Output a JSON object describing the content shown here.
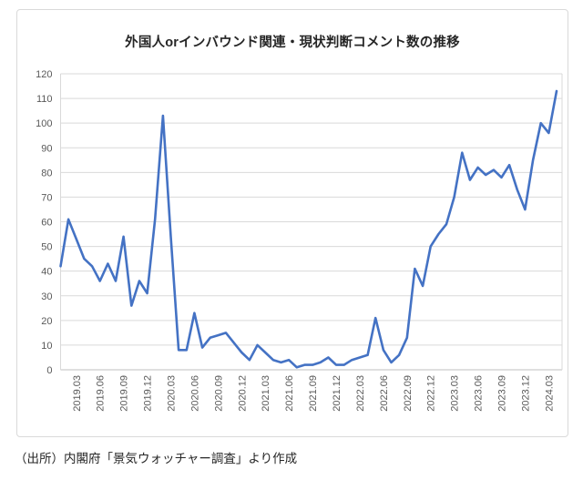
{
  "chart": {
    "title": "外国人orインバウンド関連・現状判断コメント数の推移"
  },
  "footer": {
    "source_text": "（出所）内閣府「景気ウォッチャー調査」より作成"
  },
  "chart_data": {
    "type": "line",
    "title": "外国人orインバウンド関連・現状判断コメント数の推移",
    "x": [
      "2019.01",
      "2019.02",
      "2019.03",
      "2019.04",
      "2019.05",
      "2019.06",
      "2019.07",
      "2019.08",
      "2019.09",
      "2019.10",
      "2019.11",
      "2019.12",
      "2020.01",
      "2020.02",
      "2020.03",
      "2020.04",
      "2020.05",
      "2020.06",
      "2020.07",
      "2020.08",
      "2020.09",
      "2020.10",
      "2020.11",
      "2020.12",
      "2021.01",
      "2021.02",
      "2021.03",
      "2021.04",
      "2021.05",
      "2021.06",
      "2021.07",
      "2021.08",
      "2021.09",
      "2021.10",
      "2021.11",
      "2021.12",
      "2022.01",
      "2022.02",
      "2022.03",
      "2022.04",
      "2022.05",
      "2022.06",
      "2022.07",
      "2022.08",
      "2022.09",
      "2022.10",
      "2022.11",
      "2022.12",
      "2023.01",
      "2023.02",
      "2023.03",
      "2023.04",
      "2023.05",
      "2023.06",
      "2023.07",
      "2023.08",
      "2023.09",
      "2023.10",
      "2023.11",
      "2023.12",
      "2024.01",
      "2024.02",
      "2024.03",
      "2024.04"
    ],
    "values": [
      42,
      61,
      53,
      45,
      42,
      36,
      43,
      36,
      54,
      26,
      36,
      31,
      61,
      103,
      54,
      8,
      8,
      23,
      9,
      13,
      14,
      15,
      11,
      7,
      4,
      10,
      7,
      4,
      3,
      4,
      1,
      2,
      2,
      3,
      5,
      2,
      2,
      4,
      5,
      6,
      21,
      8,
      3,
      6,
      13,
      41,
      34,
      50,
      55,
      59,
      70,
      88,
      77,
      82,
      79,
      81,
      78,
      83,
      73,
      65,
      85,
      100,
      96,
      113
    ],
    "x_tick_labels": [
      "2019.03",
      "2019.06",
      "2019.09",
      "2019.12",
      "2020.03",
      "2020.06",
      "2020.09",
      "2020.12",
      "2021.03",
      "2021.06",
      "2021.09",
      "2021.12",
      "2022.03",
      "2022.06",
      "2022.09",
      "2022.12",
      "2023.03",
      "2023.06",
      "2023.09",
      "2023.12",
      "2024.03"
    ],
    "y_ticks": [
      0,
      10,
      20,
      30,
      40,
      50,
      60,
      70,
      80,
      90,
      100,
      110,
      120
    ],
    "ylim": [
      0,
      120
    ],
    "ytick_step": 10,
    "legend": "none",
    "grid": "horizontal",
    "line_color": "#4472C4",
    "gridline_color": "#d9d9d9",
    "axis_line_color": "#bfbfbf",
    "axis_text_color": "#595959",
    "title_color": "#262626"
  }
}
